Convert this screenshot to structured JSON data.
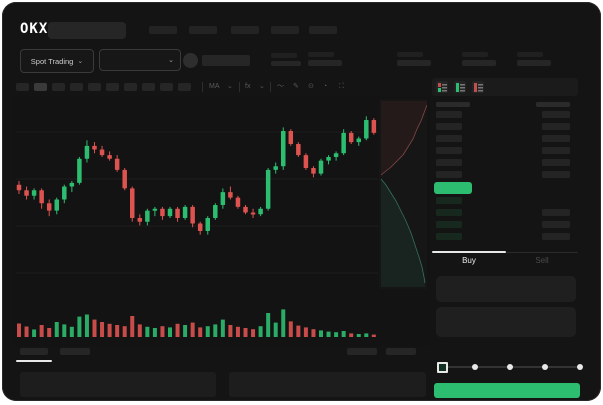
{
  "header": {
    "logo": "OKX",
    "search_placeholder": "",
    "nav_pill_count": 5
  },
  "trade_bar": {
    "market_selector_label": "Spot Trading",
    "caret": "⌄",
    "stat_group_count": 4
  },
  "toolbar": {
    "timeframe_pill_count": 10,
    "active_timeframe_index": 1,
    "indicator_label_1": "MA",
    "indicator_label_2": "fx",
    "icons": [
      "wave-icon",
      "draw-icon",
      "camera-icon",
      "clock-icon",
      "fullscreen-icon"
    ],
    "icon_glyphs": {
      "wave": "〜",
      "draw": "✎",
      "camera": "⊙",
      "clock": "◔",
      "fullscreen": "⛶"
    }
  },
  "chart_data": {
    "type": "candlestick",
    "title": "",
    "xlabel": "",
    "ylabel": "",
    "note": "no axis tick labels visible; prices normalized 0-100 from pixel positions",
    "ylim": [
      0,
      100
    ],
    "grid": "horizontal-faint",
    "candles": [
      [
        58,
        60,
        53,
        55
      ],
      [
        55,
        57,
        50,
        52
      ],
      [
        52,
        56,
        50,
        55
      ],
      [
        55,
        56,
        45,
        48
      ],
      [
        48,
        50,
        41,
        44
      ],
      [
        44,
        51,
        42,
        50
      ],
      [
        50,
        58,
        48,
        57
      ],
      [
        57,
        60,
        54,
        59
      ],
      [
        59,
        73,
        58,
        72
      ],
      [
        72,
        82,
        70,
        79
      ],
      [
        79,
        81,
        75,
        77
      ],
      [
        77,
        79,
        73,
        74
      ],
      [
        74,
        76,
        71,
        72
      ],
      [
        72,
        74,
        65,
        66
      ],
      [
        66,
        67,
        55,
        56
      ],
      [
        56,
        57,
        38,
        40
      ],
      [
        40,
        42,
        36,
        38
      ],
      [
        38,
        45,
        36,
        44
      ],
      [
        44,
        46,
        41,
        45
      ],
      [
        45,
        46,
        39,
        41
      ],
      [
        41,
        46,
        40,
        45
      ],
      [
        45,
        46,
        38,
        40
      ],
      [
        40,
        47,
        39,
        46
      ],
      [
        46,
        47,
        35,
        37
      ],
      [
        37,
        38,
        31,
        33
      ],
      [
        33,
        41,
        31,
        40
      ],
      [
        40,
        48,
        39,
        47
      ],
      [
        47,
        56,
        45,
        54
      ],
      [
        54,
        57,
        50,
        51
      ],
      [
        51,
        52,
        45,
        46
      ],
      [
        46,
        47,
        42,
        43
      ],
      [
        43,
        45,
        40,
        42
      ],
      [
        42,
        46,
        41,
        45
      ],
      [
        45,
        67,
        44,
        66
      ],
      [
        66,
        70,
        64,
        68
      ],
      [
        68,
        89,
        66,
        87
      ],
      [
        87,
        88,
        79,
        80
      ],
      [
        80,
        81,
        73,
        74
      ],
      [
        74,
        75,
        66,
        67
      ],
      [
        67,
        68,
        62,
        64
      ],
      [
        64,
        72,
        63,
        71
      ],
      [
        71,
        74,
        69,
        73
      ],
      [
        73,
        76,
        71,
        75
      ],
      [
        75,
        88,
        74,
        86
      ],
      [
        86,
        87,
        80,
        81
      ],
      [
        81,
        84,
        79,
        83
      ],
      [
        83,
        95,
        82,
        93
      ],
      [
        93,
        94,
        85,
        86
      ]
    ],
    "volumes": [
      45,
      35,
      25,
      40,
      30,
      50,
      42,
      34,
      68,
      75,
      58,
      50,
      44,
      40,
      36,
      70,
      42,
      34,
      30,
      36,
      32,
      44,
      40,
      48,
      32,
      36,
      42,
      58,
      40,
      34,
      30,
      26,
      36,
      80,
      48,
      92,
      52,
      38,
      32,
      26,
      22,
      18,
      16,
      20,
      12,
      10,
      12,
      8
    ],
    "depth": {
      "asks": [
        [
          48,
          6
        ],
        [
          45,
          14
        ],
        [
          42,
          22
        ],
        [
          38,
          30
        ],
        [
          34,
          40
        ],
        [
          29,
          48
        ],
        [
          24,
          56
        ],
        [
          18,
          62
        ],
        [
          12,
          68
        ],
        [
          7,
          72
        ],
        [
          2,
          76
        ]
      ],
      "bids": [
        [
          2,
          80
        ],
        [
          7,
          86
        ],
        [
          12,
          94
        ],
        [
          17,
          102
        ],
        [
          22,
          112
        ],
        [
          27,
          122
        ],
        [
          32,
          134
        ],
        [
          36,
          146
        ],
        [
          40,
          158
        ],
        [
          43,
          168
        ],
        [
          45,
          178
        ],
        [
          46,
          184
        ]
      ]
    },
    "colors": {
      "up": "#2dbd70",
      "down": "#dd5350"
    }
  },
  "orderbook": {
    "view_toggles": [
      "combined-book",
      "bids-only",
      "asks-only"
    ],
    "ask_rows": [
      {
        "left": true,
        "right": true
      },
      {
        "left": true,
        "right": true
      },
      {
        "left": true,
        "right": true
      },
      {
        "left": true,
        "right": true
      },
      {
        "left": true,
        "right": true
      },
      {
        "left": true,
        "right": true
      }
    ],
    "last_price_highlight": "#2dbd70",
    "bid_rows": [
      {
        "left": true,
        "right": false
      },
      {
        "left": true,
        "right": true
      },
      {
        "left": true,
        "right": true
      },
      {
        "left": true,
        "right": true
      }
    ]
  },
  "order_form": {
    "buy_tab_label": "Buy",
    "sell_tab_label": "Sell",
    "active_tab": "Buy",
    "slider_stop_count": 5,
    "submit_color": "#2dbd70"
  },
  "colors": {
    "window_bg": "#141414",
    "green": "#2dbd70",
    "red": "#dd5350",
    "placeholder": "#262626",
    "text_bright": "#eeeeee",
    "text_dim": "#4a4a4a"
  }
}
